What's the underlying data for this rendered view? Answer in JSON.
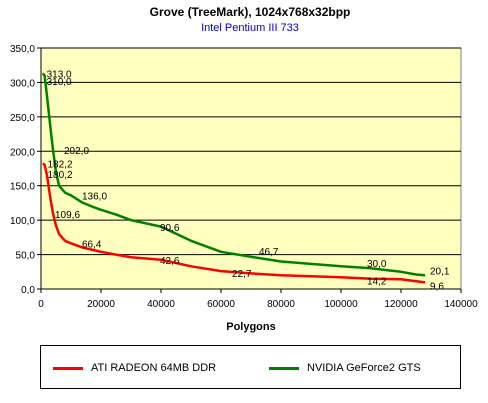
{
  "chart_data": {
    "type": "line",
    "title": "Grove (TreeMark), 1024x768x32bpp",
    "subtitle": "Intel Pentium III 733",
    "xlabel": "Polygons",
    "ylabel": "",
    "xlim": [
      0,
      140000
    ],
    "ylim": [
      0,
      350
    ],
    "x_ticks": [
      "0",
      "20000",
      "40000",
      "60000",
      "80000",
      "100000",
      "120000",
      "140000"
    ],
    "y_ticks": [
      "0,0",
      "50,0",
      "100,0",
      "150,0",
      "200,0",
      "250,0",
      "300,0",
      "350,0"
    ],
    "grid": true,
    "legend_position": "bottom",
    "plot_background": "#ffffc0",
    "series": [
      {
        "name": "ATI RADEON 64MB DDR",
        "color": "#ff0000",
        "x": [
          600,
          1200,
          2000,
          3000,
          4000,
          5000,
          6000,
          8000,
          10000,
          14000,
          18000,
          20000,
          25000,
          30000,
          40000,
          50000,
          60000,
          70000,
          80000,
          100000,
          110000,
          120000,
          128000
        ],
        "y": [
          182.2,
          180.2,
          165,
          135,
          109.6,
          92,
          80,
          70,
          66.4,
          60,
          56,
          54,
          50,
          46,
          42.6,
          33,
          26,
          22.7,
          20,
          17,
          15,
          14.2,
          9.6
        ]
      },
      {
        "name": "NVIDIA GeForce2 GTS",
        "color": "#008000",
        "x": [
          600,
          1200,
          2000,
          3000,
          4000,
          5000,
          6000,
          8000,
          10000,
          14000,
          18000,
          20000,
          25000,
          30000,
          40000,
          50000,
          60000,
          70000,
          80000,
          100000,
          110000,
          120000,
          125000,
          128000
        ],
        "y": [
          313.0,
          310.0,
          280,
          240,
          202.0,
          170,
          150,
          140,
          136.0,
          125,
          118,
          115,
          108,
          100,
          90.6,
          70,
          54,
          46.7,
          40,
          33,
          30.0,
          25,
          21,
          20.1
        ]
      }
    ],
    "annotations": [
      {
        "text": "313,0",
        "x": 1200,
        "y": 313
      },
      {
        "text": "310,0",
        "x": 1200,
        "y": 302
      },
      {
        "text": "202,0",
        "x": 7000,
        "y": 202
      },
      {
        "text": "182,2",
        "x": 1500,
        "y": 182
      },
      {
        "text": "180,2",
        "x": 1500,
        "y": 167
      },
      {
        "text": "136,0",
        "x": 13000,
        "y": 136
      },
      {
        "text": "109,6",
        "x": 4000,
        "y": 109
      },
      {
        "text": "90,6",
        "x": 39000,
        "y": 90
      },
      {
        "text": "66,4",
        "x": 13000,
        "y": 66
      },
      {
        "text": "46,7",
        "x": 72000,
        "y": 55
      },
      {
        "text": "42,6",
        "x": 39000,
        "y": 42
      },
      {
        "text": "30,0",
        "x": 108000,
        "y": 38
      },
      {
        "text": "22,7",
        "x": 63000,
        "y": 23
      },
      {
        "text": "14,2",
        "x": 108000,
        "y": 12
      },
      {
        "text": "20,1",
        "x": 129000,
        "y": 27
      },
      {
        "text": "9,6",
        "x": 129000,
        "y": 5
      }
    ]
  }
}
